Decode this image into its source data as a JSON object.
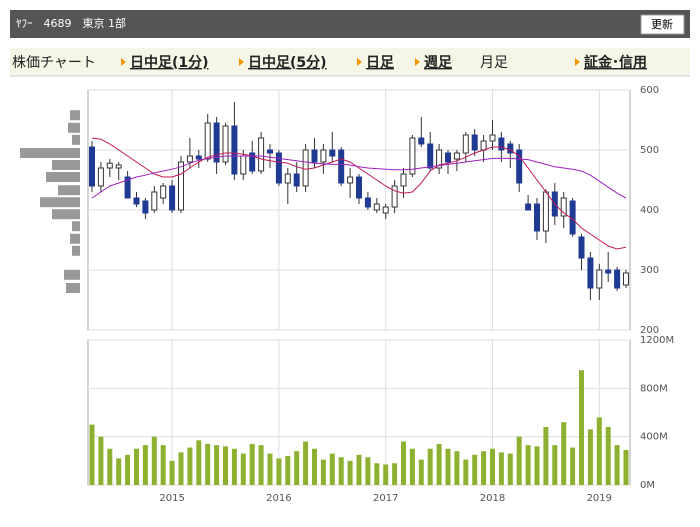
{
  "header": {
    "title": "ﾔﾌｰ　4689　東京 1部",
    "button": "更新"
  },
  "tabs": [
    "株価チャート",
    "日中足(1分)",
    "日中足(5分)",
    "日足",
    "週足",
    "月足",
    "証金･信用"
  ],
  "chart_data": [
    {
      "type": "candlestick",
      "categories": [
        null,
        null,
        null,
        null,
        null,
        null,
        null,
        null,
        null,
        "2015",
        null,
        null,
        null,
        null,
        null,
        null,
        null,
        null,
        null,
        null,
        null,
        "2016",
        null,
        null,
        null,
        null,
        null,
        null,
        null,
        null,
        null,
        null,
        null,
        "2017",
        null,
        null,
        null,
        null,
        null,
        null,
        null,
        null,
        null,
        null,
        null,
        "2018",
        null,
        null,
        null,
        null,
        null,
        null,
        null,
        null,
        null,
        null,
        null,
        "2019",
        null,
        null,
        null
      ],
      "open": [
        505,
        440,
        470,
        470,
        455,
        420,
        415,
        400,
        420,
        440,
        400,
        480,
        490,
        485,
        545,
        480,
        540,
        460,
        495,
        465,
        500,
        495,
        445,
        460,
        440,
        500,
        480,
        500,
        500,
        445,
        455,
        420,
        400,
        395,
        405,
        440,
        460,
        520,
        510,
        470,
        495,
        485,
        495,
        525,
        500,
        515,
        520,
        510,
        500,
        410,
        410,
        365,
        430,
        390,
        415,
        355,
        320,
        270,
        300,
        300,
        275
      ],
      "high": [
        515,
        480,
        485,
        480,
        465,
        430,
        420,
        440,
        445,
        450,
        490,
        520,
        500,
        560,
        555,
        545,
        580,
        500,
        515,
        530,
        510,
        500,
        470,
        480,
        510,
        520,
        510,
        530,
        505,
        470,
        460,
        430,
        420,
        410,
        450,
        470,
        525,
        555,
        530,
        510,
        500,
        500,
        530,
        535,
        525,
        550,
        530,
        515,
        510,
        425,
        420,
        435,
        445,
        430,
        420,
        360,
        330,
        310,
        330,
        305,
        300
      ],
      "low": [
        430,
        430,
        455,
        450,
        420,
        405,
        385,
        395,
        410,
        395,
        395,
        470,
        470,
        480,
        460,
        475,
        450,
        450,
        460,
        460,
        470,
        440,
        410,
        430,
        430,
        470,
        460,
        480,
        440,
        420,
        410,
        400,
        395,
        385,
        395,
        420,
        455,
        505,
        465,
        460,
        460,
        465,
        480,
        490,
        480,
        500,
        480,
        470,
        430,
        400,
        350,
        345,
        375,
        370,
        355,
        300,
        250,
        250,
        280,
        265,
        270
      ],
      "close": [
        440,
        470,
        478,
        475,
        420,
        410,
        395,
        430,
        440,
        400,
        480,
        490,
        485,
        545,
        480,
        540,
        460,
        490,
        465,
        520,
        495,
        445,
        460,
        440,
        500,
        480,
        500,
        490,
        445,
        455,
        420,
        405,
        410,
        405,
        440,
        460,
        520,
        510,
        470,
        500,
        480,
        495,
        525,
        500,
        515,
        525,
        500,
        495,
        445,
        400,
        365,
        430,
        390,
        420,
        360,
        320,
        270,
        300,
        295,
        270,
        295
      ],
      "up_color": "#ffffff",
      "down_color": "#1f3a93",
      "lines": [
        {
          "color": "#c0185a",
          "values": [
            520,
            518,
            510,
            500,
            490,
            480,
            470,
            460,
            455,
            455,
            460,
            470,
            480,
            488,
            492,
            495,
            495,
            493,
            490,
            485,
            482,
            480,
            478,
            472,
            468,
            470,
            475,
            480,
            485,
            480,
            470,
            460,
            450,
            440,
            432,
            428,
            430,
            445,
            465,
            475,
            478,
            482,
            488,
            495,
            500,
            505,
            505,
            500,
            490,
            470,
            450,
            430,
            410,
            395,
            385,
            370,
            360,
            350,
            340,
            335,
            338
          ]
        },
        {
          "color": "#a020c0",
          "values": [
            420,
            430,
            440,
            445,
            450,
            455,
            458,
            462,
            465,
            468,
            472,
            478,
            483,
            486,
            488,
            490,
            490,
            490,
            490,
            490,
            488,
            486,
            484,
            482,
            480,
            478,
            477,
            476,
            476,
            475,
            472,
            470,
            469,
            468,
            467,
            467,
            468,
            470,
            472,
            474,
            476,
            478,
            480,
            482,
            484,
            486,
            486,
            486,
            485,
            484,
            480,
            476,
            472,
            470,
            468,
            465,
            458,
            448,
            438,
            428,
            420
          ]
        }
      ],
      "price_volume": {
        "prices": [
          558,
          537,
          517,
          495,
          475,
          455,
          433,
          413,
          393,
          373,
          352,
          332,
          292,
          270
        ],
        "values": [
          10,
          12,
          8,
          60,
          28,
          34,
          22,
          40,
          28,
          8,
          10,
          8,
          16,
          14
        ],
        "color": "#999999"
      },
      "ylim": [
        200,
        600
      ],
      "yticks": [
        200,
        300,
        400,
        500,
        600
      ],
      "grid": true
    },
    {
      "type": "bar",
      "color": "#8db030",
      "values": [
        500,
        400,
        300,
        220,
        250,
        300,
        330,
        400,
        330,
        200,
        270,
        310,
        370,
        340,
        330,
        320,
        300,
        260,
        340,
        330,
        260,
        220,
        240,
        280,
        360,
        300,
        210,
        260,
        230,
        200,
        250,
        230,
        180,
        170,
        180,
        360,
        300,
        210,
        300,
        340,
        300,
        280,
        210,
        250,
        280,
        300,
        270,
        260,
        400,
        330,
        320,
        480,
        330,
        520,
        310,
        950,
        460,
        560,
        480,
        330,
        290
      ],
      "ylim": [
        0,
        1200
      ],
      "yticks": [
        {
          "value": 0,
          "label": "0M"
        },
        {
          "value": 400,
          "label": "400M"
        },
        {
          "value": 800,
          "label": "800M"
        },
        {
          "value": 1200,
          "label": "1200M"
        }
      ],
      "grid": true
    }
  ]
}
